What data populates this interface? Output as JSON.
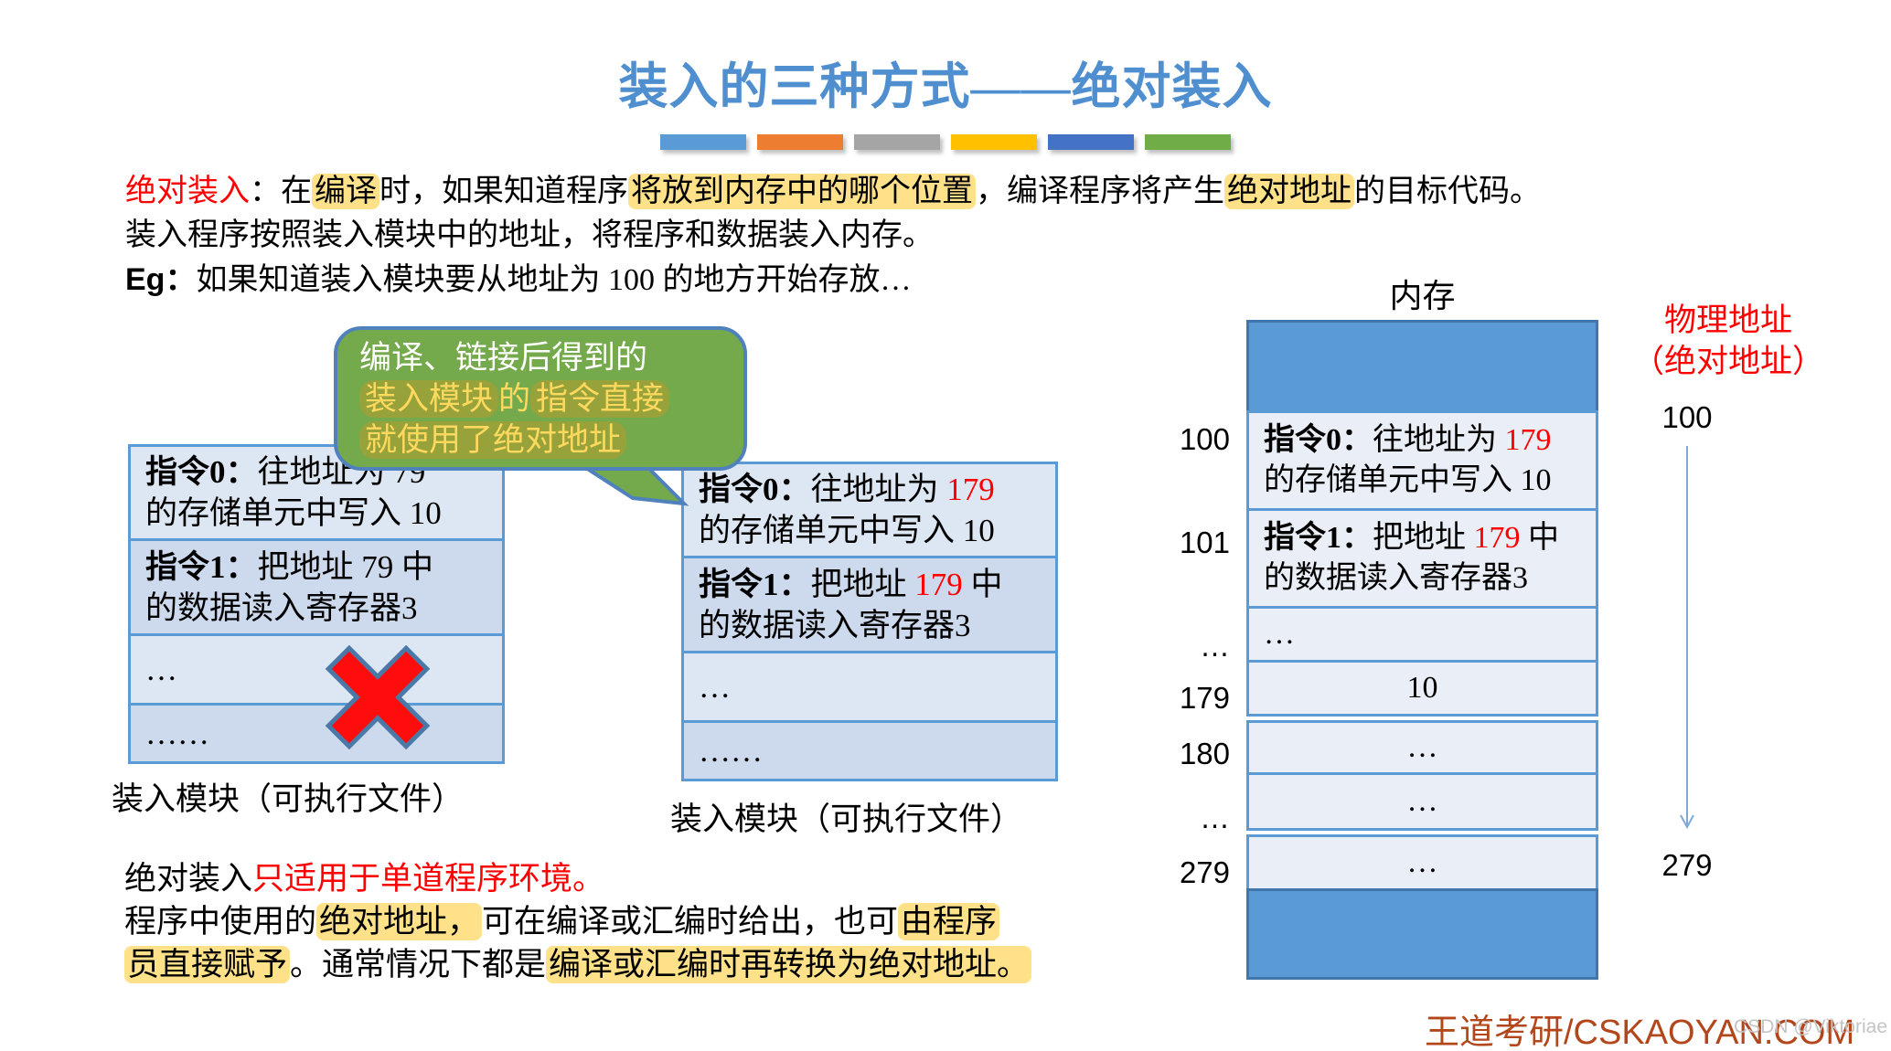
{
  "title": "装入的三种方式——绝对装入",
  "decor": {
    "bars": [
      "#5B9BD5",
      "#ED7D31",
      "#A5A5A5",
      "#FFC000",
      "#4472C4",
      "#70AD47"
    ]
  },
  "colors": {
    "title_blue": "#4F8FD0",
    "red_text": "#FE0000",
    "yellow_highlight": "#FFE18A",
    "bubble_green": "#74A94C",
    "bubble_border_blue": "#4F81BD",
    "bubble_olive_highlight": "#97A23B",
    "table_border_blue": "#5B9BD5",
    "table_row_light": "#DDE6F3",
    "table_row_dark": "#CDD9EC",
    "memory_solid_block": "#5B9BD5",
    "cross_red": "#FF0C0C",
    "footer_brown": "#B3471C"
  },
  "intro": {
    "l1": {
      "s1": "绝对装入",
      "s2": "：在",
      "s3": "编译",
      "s4": "时，如果知道程序",
      "s5": "将放到内存中的哪个位置",
      "s6": "，编译程序将产生",
      "s7": "绝对地址",
      "s8": "的目标代码。"
    },
    "l2": "装入程序按照装入模块中的地址，将程序和数据装入内存。",
    "l3": {
      "s1": "Eg：",
      "s2": "如果知道装入模块要从地址为 100 的地方开始存放…"
    }
  },
  "bubble": {
    "l1": "编译、链接后得到的",
    "l2": {
      "s1": "装入模块",
      "s2": "的",
      "s3": "指令直接"
    },
    "l3": "就使用了绝对地址"
  },
  "left_module": {
    "r1": {
      "b": "指令0：",
      "t1": "往地址为 79",
      "t2": "的存储单元中写入 10"
    },
    "r2": {
      "b": "指令1：",
      "t1": "把地址 79 中",
      "t2": "的数据读入寄存器3"
    },
    "r3": "…",
    "r4": "……",
    "label": "装入模块（可执行文件）"
  },
  "mid_module": {
    "r1": {
      "b": "指令0：",
      "t1a": "往地址为 ",
      "addr": "179",
      "t2": "的存储单元中写入 10"
    },
    "r2": {
      "b": "指令1：",
      "t1a": "把地址 ",
      "addr": "179",
      "t1b": " 中",
      "t2": "的数据读入寄存器3"
    },
    "r3": "…",
    "r4": "……",
    "label": "装入模块（可执行文件）"
  },
  "memory": {
    "title": "内存",
    "rows": {
      "r100": {
        "addr": "100",
        "b": "指令0：",
        "t1a": "往地址为 ",
        "hot": "179",
        "t2": "的存储单元中写入 10"
      },
      "r101": {
        "addr": "101",
        "b": "指令1：",
        "t1a": "把地址 ",
        "hot": "179",
        "t1b": " 中",
        "t2": "的数据读入寄存器3"
      },
      "rd1": {
        "addr": "…",
        "val": "…"
      },
      "r179": {
        "addr": "179",
        "val": "10"
      },
      "r180": {
        "addr": "180",
        "val": "…"
      },
      "rd2": {
        "addr": "…",
        "val": "…"
      },
      "r279": {
        "addr": "279",
        "val": "…"
      }
    },
    "phys_label_l1": "物理地址",
    "phys_label_l2": "（绝对地址）",
    "range_top": "100",
    "range_bottom": "279"
  },
  "bottom": {
    "l1": {
      "s1": "绝对装入",
      "s2": "只适用于单道程序环境。"
    },
    "l2": {
      "s1": "程序中使用的",
      "s2": "绝对地址，",
      "s3": "可在编译或汇编时给出，也可",
      "s4": "由程序"
    },
    "l3": {
      "s1": "员直接赋予",
      "s2": "。通常情况下都是",
      "s3": "编译或汇编时再转换为绝对地址。"
    }
  },
  "footer": {
    "brand": "王道考研/CSKAOYAN.COM",
    "watermark": "CSDN @Viktoriae"
  }
}
